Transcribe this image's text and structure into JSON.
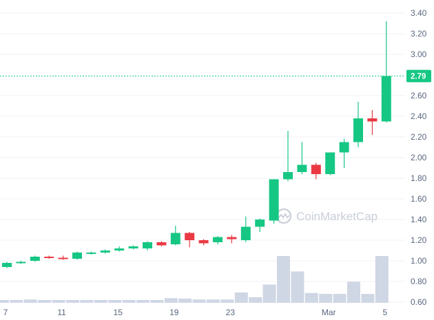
{
  "chart_data": {
    "type": "candlestick",
    "watermark": "CoinMarketCap",
    "colors": {
      "up": "#16c784",
      "down": "#ea3943",
      "volume": "#cfd6e4",
      "grid": "#eff2f5",
      "axis_text": "#58667e",
      "last_price": "#16c784"
    },
    "x_axis": {
      "tick_labels": [
        "7",
        "11",
        "15",
        "19",
        "23",
        "Mar",
        "5"
      ],
      "tick_candle_index": [
        0,
        4,
        8,
        12,
        16,
        23,
        27
      ]
    },
    "y_axis": {
      "position": "right",
      "ylim": [
        0.52,
        3.46
      ],
      "ticks": [
        0.6,
        0.8,
        1.0,
        1.2,
        1.4,
        1.6,
        1.8,
        2.0,
        2.2,
        2.4,
        2.6,
        3.0,
        3.2,
        3.4
      ],
      "tick_labels": [
        "0.60",
        "0.80",
        "1.00",
        "1.20",
        "1.40",
        "1.60",
        "1.80",
        "2.00",
        "2.20",
        "2.40",
        "2.60",
        "3.00",
        "3.20",
        "3.40"
      ]
    },
    "last_price": {
      "value": 2.79,
      "label": "2.79"
    },
    "candles": [
      {
        "open": 0.94,
        "high": 0.99,
        "low": 0.93,
        "close": 0.98
      },
      {
        "open": 0.98,
        "high": 1.0,
        "low": 0.97,
        "close": 0.99
      },
      {
        "open": 1.0,
        "high": 1.05,
        "low": 0.99,
        "close": 1.04
      },
      {
        "open": 1.04,
        "high": 1.05,
        "low": 1.02,
        "close": 1.03
      },
      {
        "open": 1.03,
        "high": 1.05,
        "low": 1.01,
        "close": 1.02
      },
      {
        "open": 1.02,
        "high": 1.09,
        "low": 1.01,
        "close": 1.08
      },
      {
        "open": 1.07,
        "high": 1.09,
        "low": 1.06,
        "close": 1.08
      },
      {
        "open": 1.08,
        "high": 1.11,
        "low": 1.07,
        "close": 1.1
      },
      {
        "open": 1.1,
        "high": 1.14,
        "low": 1.09,
        "close": 1.12
      },
      {
        "open": 1.12,
        "high": 1.15,
        "low": 1.11,
        "close": 1.14
      },
      {
        "open": 1.12,
        "high": 1.19,
        "low": 1.1,
        "close": 1.18
      },
      {
        "open": 1.18,
        "high": 1.19,
        "low": 1.14,
        "close": 1.15
      },
      {
        "open": 1.16,
        "high": 1.34,
        "low": 1.15,
        "close": 1.27
      },
      {
        "open": 1.27,
        "high": 1.28,
        "low": 1.13,
        "close": 1.2
      },
      {
        "open": 1.2,
        "high": 1.21,
        "low": 1.15,
        "close": 1.17
      },
      {
        "open": 1.18,
        "high": 1.24,
        "low": 1.16,
        "close": 1.23
      },
      {
        "open": 1.23,
        "high": 1.25,
        "low": 1.17,
        "close": 1.21
      },
      {
        "open": 1.2,
        "high": 1.43,
        "low": 1.18,
        "close": 1.33
      },
      {
        "open": 1.33,
        "high": 1.41,
        "low": 1.28,
        "close": 1.4
      },
      {
        "open": 1.39,
        "high": 1.79,
        "low": 1.36,
        "close": 1.79
      },
      {
        "open": 1.79,
        "high": 2.26,
        "low": 1.77,
        "close": 1.86
      },
      {
        "open": 1.86,
        "high": 2.15,
        "low": 1.84,
        "close": 1.93
      },
      {
        "open": 1.93,
        "high": 1.95,
        "low": 1.79,
        "close": 1.84
      },
      {
        "open": 1.84,
        "high": 2.05,
        "low": 1.83,
        "close": 2.05
      },
      {
        "open": 2.05,
        "high": 2.18,
        "low": 1.9,
        "close": 2.15
      },
      {
        "open": 2.15,
        "high": 2.54,
        "low": 2.1,
        "close": 2.38
      },
      {
        "open": 2.38,
        "high": 2.46,
        "low": 2.22,
        "close": 2.35
      },
      {
        "open": 2.35,
        "high": 3.32,
        "low": 2.34,
        "close": 2.79
      }
    ],
    "volume": [
      0.06,
      0.06,
      0.07,
      0.06,
      0.06,
      0.06,
      0.06,
      0.06,
      0.06,
      0.06,
      0.06,
      0.06,
      0.1,
      0.09,
      0.07,
      0.07,
      0.07,
      0.22,
      0.12,
      0.39,
      1.0,
      0.67,
      0.21,
      0.19,
      0.19,
      0.45,
      0.19,
      1.0
    ]
  }
}
